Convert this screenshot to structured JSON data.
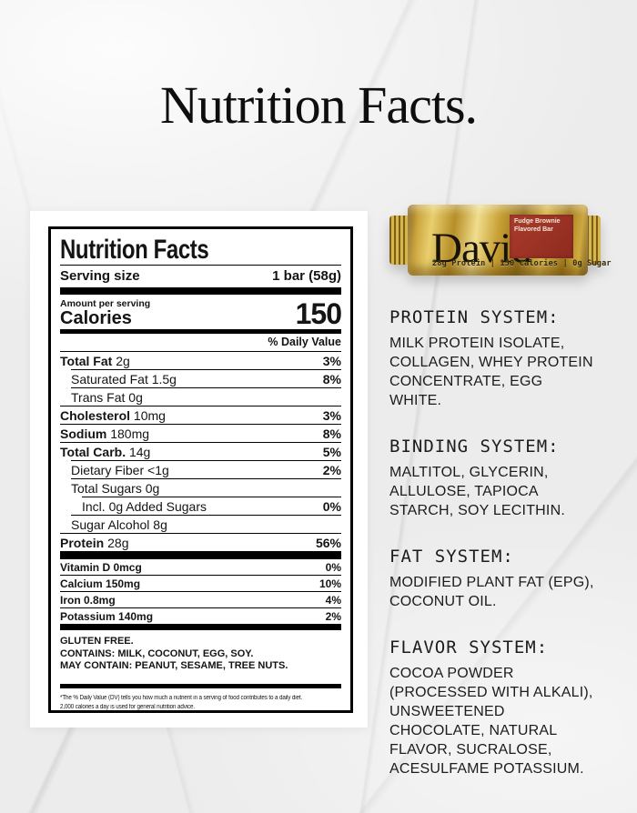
{
  "page": {
    "title": "Nutrition Facts."
  },
  "label": {
    "title": "Nutrition Facts",
    "serving_size_label": "Serving size",
    "serving_size_value": "1 bar (58g)",
    "amount_per_serving": "Amount per serving",
    "calories_label": "Calories",
    "calories_value": "150",
    "daily_value_header": "% Daily Value",
    "nutrients": [
      {
        "name": "Total Fat",
        "amount": "2g",
        "dv": "3%"
      },
      {
        "name": "Saturated Fat",
        "amount": "1.5g",
        "dv": "8%"
      },
      {
        "name": "Trans Fat",
        "amount": "0g",
        "dv": ""
      },
      {
        "name": "Cholesterol",
        "amount": "10mg",
        "dv": "3%"
      },
      {
        "name": "Sodium",
        "amount": "180mg",
        "dv": "8%"
      },
      {
        "name": "Total Carb.",
        "amount": "14g",
        "dv": "5%"
      },
      {
        "name": "Dietary Fiber",
        "amount": "<1g",
        "dv": "2%"
      },
      {
        "name": "Total Sugars",
        "amount": "0g",
        "dv": ""
      },
      {
        "name": "Incl. 0g Added Sugars",
        "amount": "",
        "dv": "0%"
      },
      {
        "name": "Sugar Alcohol",
        "amount": "8g",
        "dv": ""
      },
      {
        "name": "Protein",
        "amount": "28g",
        "dv": "56%"
      }
    ],
    "micronutrients": [
      {
        "name": "Vitamin D 0mcg",
        "dv": "0%"
      },
      {
        "name": "Calcium 150mg",
        "dv": "10%"
      },
      {
        "name": "Iron 0.8mg",
        "dv": "4%"
      },
      {
        "name": "Potassium 140mg",
        "dv": "2%"
      }
    ],
    "allergen_lines": [
      "GLUTEN FREE.",
      "CONTAINS: MILK, COCONUT, EGG, SOY.",
      "MAY CONTAIN: PEANUT, SESAME, TREE NUTS."
    ],
    "footnote_lines": [
      "*The % Daily Value (DV) tells you how much a nutrient in a serving of food contributes to a daily diet.",
      "2,000 calories a day is used for general nutrition advice."
    ]
  },
  "product_bar": {
    "brand": "David",
    "trademark": "™",
    "flavor": "Fudge Brownie Flavored Bar",
    "stats": "28g Protein | 150 Calories | 0g Sugar",
    "colors": {
      "gold": "#c9a13b",
      "gold_dark": "#8a681c",
      "red_panel": "#9c2e25",
      "background": "#ececec"
    }
  },
  "systems": [
    {
      "heading": "PROTEIN SYSTEM:",
      "body": "MILK PROTEIN ISOLATE, COLLAGEN, WHEY PROTEIN CONCENTRATE, EGG WHITE."
    },
    {
      "heading": "BINDING SYSTEM:",
      "body": "MALTITOL, GLYCERIN, ALLULOSE, TAPIOCA STARCH, SOY LECITHIN."
    },
    {
      "heading": "FAT SYSTEM:",
      "body": "MODIFIED PLANT FAT (EPG), COCONUT OIL."
    },
    {
      "heading": "FLAVOR SYSTEM:",
      "body": "COCOA POWDER (PROCESSED WITH ALKALI), UNSWEETENED CHOCOLATE, NATURAL FLAVOR, SUCRALOSE, ACESULFAME POTASSIUM."
    }
  ]
}
